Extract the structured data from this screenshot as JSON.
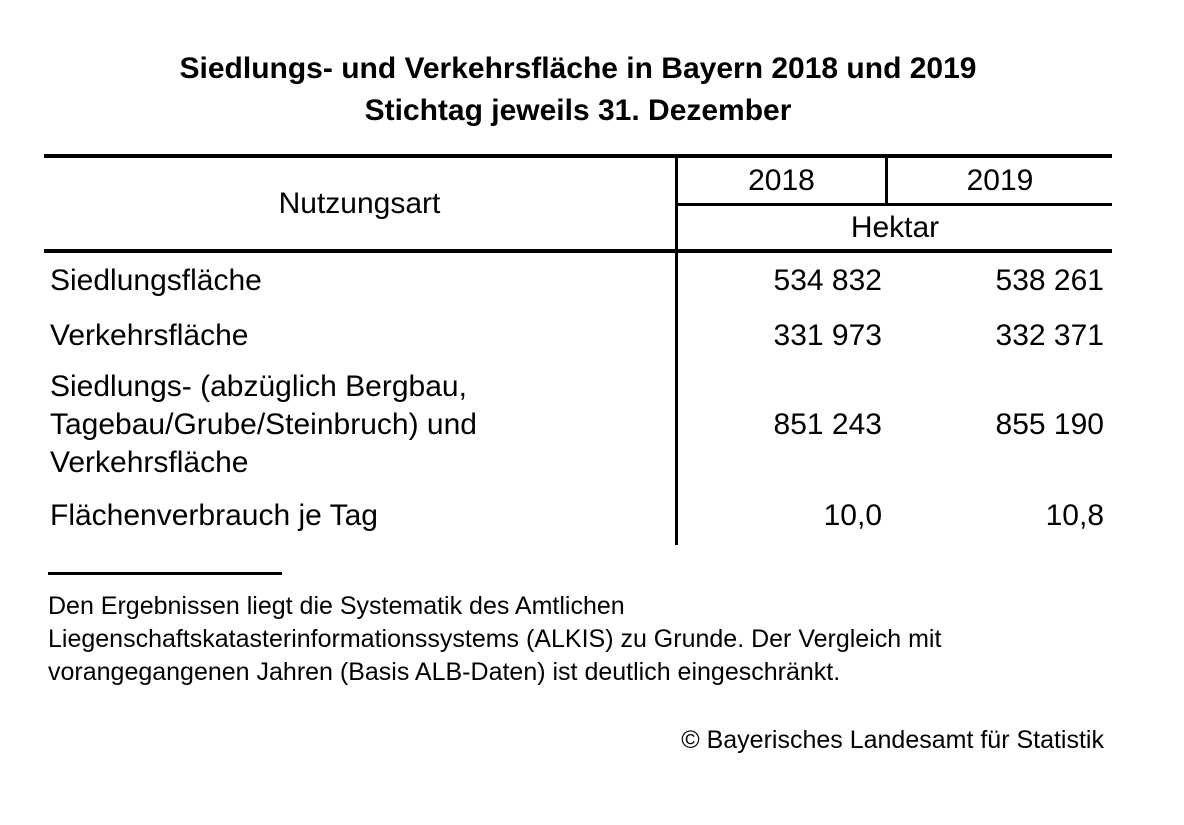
{
  "title": {
    "line1": "Siedlungs- und Verkehrsfläche in Bayern 2018 und 2019",
    "line2": "Stichtag jeweils 31. Dezember"
  },
  "table": {
    "header": {
      "category_column": "Nutzungsart",
      "year_2018": "2018",
      "year_2019": "2019",
      "unit": "Hektar"
    },
    "rows": [
      {
        "label": "Siedlungsfläche",
        "value_2018": "534 832",
        "value_2019": "538 261"
      },
      {
        "label": "Verkehrsfläche",
        "value_2018": "331 973",
        "value_2019": "332 371"
      },
      {
        "label_lines": [
          "Siedlungs- (abzüglich Bergbau,",
          "Tagebau/Grube/Steinbruch) und",
          "Verkehrsfläche"
        ],
        "value_2018": "851 243",
        "value_2019": "855 190"
      },
      {
        "label": "Flächenverbrauch je Tag",
        "value_2018": "10,0",
        "value_2019": "10,8"
      }
    ]
  },
  "footnote": {
    "lines": [
      "Den Ergebnissen liegt die Systematik des Amtlichen",
      "Liegenschaftskatasterinformationssystems (ALKIS) zu Grunde. Der Vergleich mit",
      "vorangegangenen Jahren (Basis ALB-Daten) ist deutlich eingeschränkt."
    ]
  },
  "copyright": "© Bayerisches Landesamt für Statistik"
}
